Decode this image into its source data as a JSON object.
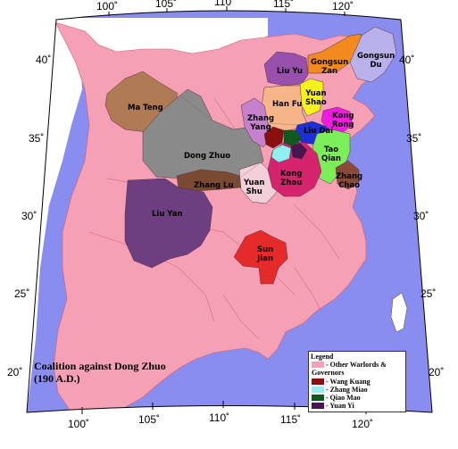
{
  "colors": {
    "sea": "#8a8df0",
    "land_outside": "#ffffff",
    "other_warlords": "#f5a0b5",
    "province_border": "#d55a70",
    "frame": "#000000"
  },
  "ticks": {
    "top": [
      "100˚",
      "105˚",
      "110˚",
      "115˚",
      "120˚"
    ],
    "bottom": [
      "100˚",
      "105˚",
      "110˚",
      "115˚",
      "120˚"
    ],
    "left": [
      "40˚",
      "35˚",
      "30˚",
      "25˚",
      "20˚"
    ],
    "right": [
      "40˚",
      "35˚",
      "30˚",
      "25˚",
      "20˚"
    ]
  },
  "regions": [
    {
      "id": "ma-teng",
      "label": "Ma Teng",
      "color": "#b07a55"
    },
    {
      "id": "dong-zhuo",
      "label": "Dong Zhuo",
      "color": "#8a8a8a"
    },
    {
      "id": "zhang-lu",
      "label": "Zhang Lu",
      "color": "#7a4a32"
    },
    {
      "id": "liu-yan",
      "label": "Liu Yan",
      "color": "#6e3f80"
    },
    {
      "id": "yuan-shu",
      "label": "Yuan\nShu",
      "color": "#f3d0d8"
    },
    {
      "id": "sun-jian",
      "label": "Sun\nJian",
      "color": "#e52a2a"
    },
    {
      "id": "liu-yu",
      "label": "Liu Yu",
      "color": "#9950ad"
    },
    {
      "id": "gongsun-zan",
      "label": "Gongsun\nZan",
      "color": "#f28a1e"
    },
    {
      "id": "gongsun-du",
      "label": "Gongsun\nDu",
      "color": "#b9b1ea"
    },
    {
      "id": "han-fu",
      "label": "Han Fu",
      "color": "#f7b58a"
    },
    {
      "id": "yuan-shao",
      "label": "Yuan\nShao",
      "color": "#f7f21c"
    },
    {
      "id": "zhang-yang",
      "label": "Zhang\nYang",
      "color": "#c680cc"
    },
    {
      "id": "kong-rong",
      "label": "Kong\nRong",
      "color": "#f01ae0"
    },
    {
      "id": "liu-dai",
      "label": "Liu Dai",
      "color": "#1d2fd8"
    },
    {
      "id": "tao-qian",
      "label": "Tao\nQian",
      "color": "#7cee5a"
    },
    {
      "id": "kong-zhou",
      "label": "Kong\nZhou",
      "color": "#d6236e"
    },
    {
      "id": "zhang-chao",
      "label": "Zhang\nChao",
      "color": "#8a4a3a"
    }
  ],
  "small_regions": [
    {
      "id": "wang-kuang",
      "color": "#8a1010"
    },
    {
      "id": "zhang-miao",
      "color": "#8ef0f0"
    },
    {
      "id": "qiao-mao",
      "color": "#0e5a1e"
    },
    {
      "id": "yuan-yi",
      "color": "#4a1450"
    }
  ],
  "title": {
    "line1": "Coalition against Dong Zhuo",
    "line2": "(190 A.D.)"
  },
  "legend": {
    "title": "Legend",
    "items": [
      {
        "label": "- Other Warlords &",
        "color": "#f5a0b5"
      },
      {
        "label": "Governors",
        "color": ""
      },
      {
        "label": "- Wang Kuang",
        "color": "#8a1010"
      },
      {
        "label": "- Zhang Miao",
        "color": "#8ef0f0"
      },
      {
        "label": "- Qiao Mao",
        "color": "#0e5a1e"
      },
      {
        "label": "- Yuan Yi",
        "color": "#4a1450"
      }
    ]
  }
}
